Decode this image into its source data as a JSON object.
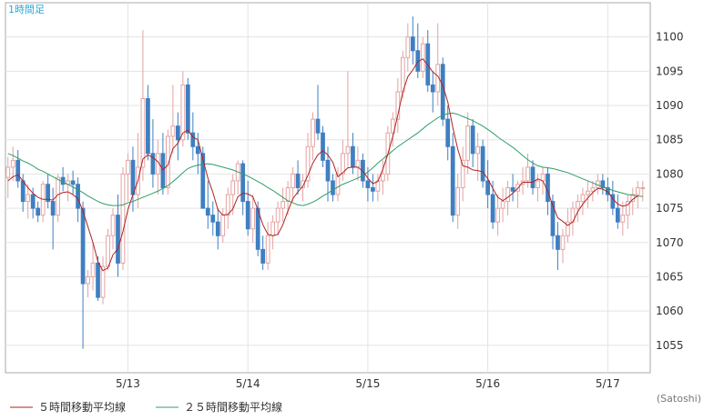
{
  "timeframe_label": "1時間足",
  "source_label": "(Satoshi)",
  "chart_data": {
    "type": "candlestick",
    "ylim": [
      1051,
      1105
    ],
    "y_ticks": [
      1055,
      1060,
      1065,
      1070,
      1075,
      1080,
      1085,
      1090,
      1095,
      1100
    ],
    "x_tick_labels": [
      "5/13",
      "5/14",
      "5/15",
      "5/16",
      "5/17"
    ],
    "x_tick_index": [
      24,
      48,
      72,
      96,
      120
    ],
    "series_count": 128,
    "legend": [
      {
        "name": "５時間移動平均線",
        "color": "#b22222"
      },
      {
        "name": "２５時間移動平均線",
        "color": "#2e9e6a"
      }
    ],
    "up_color": "#e3a3a3",
    "down_color": "#3f7fc1",
    "ma5_color": "#b22222",
    "ma25_color": "#2e9e6a",
    "grid": true,
    "candles_ohlc": [
      [
        1079.5,
        1082.5,
        1076.5,
        1081.0
      ],
      [
        1081.0,
        1084.0,
        1079.0,
        1082.0
      ],
      [
        1082.0,
        1083.5,
        1078.0,
        1079.0
      ],
      [
        1079.0,
        1080.0,
        1074.5,
        1076.0
      ],
      [
        1076.0,
        1078.5,
        1073.5,
        1077.0
      ],
      [
        1077.0,
        1078.0,
        1073.5,
        1075.0
      ],
      [
        1075.0,
        1076.0,
        1073.0,
        1074.0
      ],
      [
        1074.0,
        1079.0,
        1073.0,
        1078.5
      ],
      [
        1078.5,
        1080.0,
        1075.0,
        1076.0
      ],
      [
        1076.0,
        1078.0,
        1069.0,
        1074.0
      ],
      [
        1074.0,
        1080.0,
        1073.0,
        1079.5
      ],
      [
        1079.5,
        1081.0,
        1077.5,
        1078.5
      ],
      [
        1078.5,
        1080.0,
        1076.0,
        1079.0
      ],
      [
        1079.0,
        1080.5,
        1077.0,
        1078.5
      ],
      [
        1078.5,
        1079.5,
        1073.0,
        1075.0
      ],
      [
        1075.0,
        1076.0,
        1054.5,
        1064.0
      ],
      [
        1064.0,
        1066.0,
        1062.0,
        1065.0
      ],
      [
        1065.0,
        1070.0,
        1063.0,
        1067.0
      ],
      [
        1067.0,
        1068.0,
        1061.5,
        1062.0
      ],
      [
        1062.0,
        1068.0,
        1061.0,
        1066.5
      ],
      [
        1066.5,
        1072.0,
        1066.0,
        1071.0
      ],
      [
        1071.0,
        1075.0,
        1069.0,
        1074.0
      ],
      [
        1074.0,
        1077.0,
        1065.0,
        1067.0
      ],
      [
        1067.0,
        1081.0,
        1066.0,
        1080.0
      ],
      [
        1080.0,
        1083.0,
        1076.0,
        1082.0
      ],
      [
        1082.0,
        1084.0,
        1074.5,
        1077.0
      ],
      [
        1077.0,
        1086.0,
        1075.0,
        1081.0
      ],
      [
        1081.0,
        1101.0,
        1079.0,
        1091.0
      ],
      [
        1091.0,
        1093.0,
        1082.0,
        1083.0
      ],
      [
        1083.0,
        1088.0,
        1078.0,
        1080.0
      ],
      [
        1080.0,
        1085.0,
        1077.0,
        1083.0
      ],
      [
        1083.0,
        1086.0,
        1077.0,
        1078.0
      ],
      [
        1078.0,
        1086.5,
        1077.0,
        1085.5
      ],
      [
        1085.5,
        1093.0,
        1083.0,
        1087.0
      ],
      [
        1087.0,
        1089.0,
        1082.0,
        1085.0
      ],
      [
        1085.0,
        1095.0,
        1084.0,
        1093.0
      ],
      [
        1093.0,
        1094.0,
        1085.0,
        1086.0
      ],
      [
        1086.0,
        1089.0,
        1082.0,
        1084.0
      ],
      [
        1084.0,
        1086.0,
        1080.0,
        1083.0
      ],
      [
        1083.0,
        1084.0,
        1075.0,
        1075.0
      ],
      [
        1075.0,
        1079.0,
        1072.0,
        1074.0
      ],
      [
        1074.0,
        1076.0,
        1071.0,
        1073.0
      ],
      [
        1073.0,
        1075.0,
        1069.0,
        1071.0
      ],
      [
        1071.0,
        1075.0,
        1070.0,
        1074.0
      ],
      [
        1074.0,
        1078.0,
        1072.0,
        1077.0
      ],
      [
        1077.0,
        1080.0,
        1074.0,
        1079.0
      ],
      [
        1079.0,
        1082.0,
        1077.0,
        1081.5
      ],
      [
        1081.5,
        1082.0,
        1074.0,
        1076.0
      ],
      [
        1076.0,
        1079.0,
        1071.0,
        1072.0
      ],
      [
        1072.0,
        1077.0,
        1070.0,
        1075.0
      ],
      [
        1075.0,
        1076.0,
        1068.0,
        1069.0
      ],
      [
        1069.0,
        1071.0,
        1066.0,
        1067.0
      ],
      [
        1067.0,
        1073.0,
        1066.0,
        1071.0
      ],
      [
        1071.0,
        1074.0,
        1069.0,
        1073.0
      ],
      [
        1073.0,
        1076.0,
        1071.0,
        1075.0
      ],
      [
        1075.0,
        1078.0,
        1073.0,
        1076.0
      ],
      [
        1076.0,
        1079.0,
        1074.0,
        1078.0
      ],
      [
        1078.0,
        1081.0,
        1076.0,
        1080.0
      ],
      [
        1080.0,
        1082.0,
        1077.0,
        1078.0
      ],
      [
        1078.0,
        1080.0,
        1076.0,
        1079.0
      ],
      [
        1079.0,
        1086.0,
        1078.0,
        1084.0
      ],
      [
        1084.0,
        1089.0,
        1082.0,
        1088.0
      ],
      [
        1088.0,
        1093.0,
        1085.0,
        1086.0
      ],
      [
        1086.0,
        1087.0,
        1081.0,
        1082.0
      ],
      [
        1082.0,
        1084.0,
        1076.0,
        1079.0
      ],
      [
        1079.0,
        1080.0,
        1076.0,
        1077.0
      ],
      [
        1077.0,
        1081.0,
        1076.0,
        1080.0
      ],
      [
        1080.0,
        1085.0,
        1079.0,
        1083.0
      ],
      [
        1083.0,
        1095.0,
        1081.0,
        1084.0
      ],
      [
        1084.0,
        1086.0,
        1080.0,
        1081.0
      ],
      [
        1081.0,
        1084.0,
        1079.0,
        1082.0
      ],
      [
        1082.0,
        1083.0,
        1078.0,
        1079.0
      ],
      [
        1079.0,
        1081.0,
        1076.0,
        1078.0
      ],
      [
        1078.0,
        1080.0,
        1076.0,
        1077.5
      ],
      [
        1077.5,
        1080.0,
        1076.0,
        1079.0
      ],
      [
        1079.0,
        1082.0,
        1077.0,
        1080.0
      ],
      [
        1080.0,
        1087.0,
        1079.0,
        1086.0
      ],
      [
        1086.0,
        1089.0,
        1084.0,
        1088.0
      ],
      [
        1088.0,
        1094.0,
        1086.0,
        1092.0
      ],
      [
        1092.0,
        1098.0,
        1091.0,
        1097.0
      ],
      [
        1097.0,
        1102.0,
        1095.0,
        1100.0
      ],
      [
        1100.0,
        1103.0,
        1096.0,
        1098.0
      ],
      [
        1098.0,
        1102.0,
        1094.0,
        1095.0
      ],
      [
        1095.0,
        1100.0,
        1094.0,
        1099.0
      ],
      [
        1099.0,
        1101.0,
        1092.0,
        1093.0
      ],
      [
        1093.0,
        1095.0,
        1089.0,
        1092.0
      ],
      [
        1092.0,
        1102.0,
        1090.0,
        1096.0
      ],
      [
        1096.0,
        1097.0,
        1087.0,
        1088.0
      ],
      [
        1088.0,
        1090.0,
        1082.0,
        1084.0
      ],
      [
        1084.0,
        1086.0,
        1073.0,
        1074.0
      ],
      [
        1074.0,
        1080.0,
        1072.0,
        1078.0
      ],
      [
        1078.0,
        1084.0,
        1076.0,
        1082.0
      ],
      [
        1082.0,
        1089.0,
        1080.0,
        1087.0
      ],
      [
        1087.0,
        1088.0,
        1081.0,
        1083.0
      ],
      [
        1083.0,
        1086.0,
        1079.0,
        1084.0
      ],
      [
        1084.0,
        1085.0,
        1078.0,
        1079.0
      ],
      [
        1079.0,
        1082.0,
        1075.0,
        1077.0
      ],
      [
        1077.0,
        1079.0,
        1072.0,
        1073.0
      ],
      [
        1073.0,
        1077.0,
        1071.0,
        1075.0
      ],
      [
        1075.0,
        1078.0,
        1073.0,
        1076.0
      ],
      [
        1076.0,
        1079.0,
        1074.0,
        1078.0
      ],
      [
        1078.0,
        1080.0,
        1076.0,
        1077.5
      ],
      [
        1077.5,
        1079.0,
        1075.0,
        1078.5
      ],
      [
        1078.5,
        1081.0,
        1077.0,
        1079.0
      ],
      [
        1079.0,
        1083.0,
        1078.0,
        1081.0
      ],
      [
        1081.0,
        1082.0,
        1077.0,
        1078.0
      ],
      [
        1078.0,
        1080.0,
        1076.0,
        1079.0
      ],
      [
        1079.0,
        1081.0,
        1077.0,
        1080.0
      ],
      [
        1080.0,
        1081.0,
        1074.0,
        1076.0
      ],
      [
        1076.0,
        1077.0,
        1069.0,
        1071.0
      ],
      [
        1071.0,
        1073.0,
        1066.0,
        1069.0
      ],
      [
        1069.0,
        1072.0,
        1067.0,
        1071.0
      ],
      [
        1071.0,
        1075.0,
        1070.0,
        1073.0
      ],
      [
        1073.0,
        1076.0,
        1071.0,
        1075.0
      ],
      [
        1075.0,
        1077.0,
        1073.0,
        1076.0
      ],
      [
        1076.0,
        1078.0,
        1074.0,
        1077.0
      ],
      [
        1077.0,
        1079.0,
        1075.0,
        1077.5
      ],
      [
        1077.5,
        1079.0,
        1076.0,
        1078.0
      ],
      [
        1078.0,
        1080.0,
        1077.0,
        1079.0
      ],
      [
        1079.0,
        1080.0,
        1077.0,
        1078.0
      ],
      [
        1078.0,
        1079.5,
        1076.0,
        1077.0
      ],
      [
        1077.0,
        1079.0,
        1074.0,
        1075.0
      ],
      [
        1075.0,
        1077.0,
        1072.0,
        1073.0
      ],
      [
        1073.0,
        1076.0,
        1071.0,
        1074.0
      ],
      [
        1074.0,
        1077.0,
        1072.0,
        1076.0
      ],
      [
        1076.0,
        1078.0,
        1074.0,
        1077.0
      ],
      [
        1077.0,
        1079.0,
        1075.0,
        1078.0
      ],
      [
        1078.0,
        1079.0,
        1076.0,
        1078.0
      ]
    ],
    "ma5": [
      1079.0,
      1079.6,
      1079.9,
      1079.0,
      1078.0,
      1077.2,
      1076.6,
      1076.3,
      1076.3,
      1076.2,
      1077.0,
      1077.3,
      1077.4,
      1077.0,
      1076.4,
      1074.6,
      1072.3,
      1070.0,
      1067.2,
      1065.9,
      1066.3,
      1068.2,
      1069.1,
      1071.6,
      1074.8,
      1077.0,
      1079.0,
      1082.2,
      1082.8,
      1082.4,
      1081.8,
      1080.6,
      1081.3,
      1083.7,
      1084.5,
      1086.0,
      1086.4,
      1085.4,
      1085.0,
      1082.2,
      1079.4,
      1077.3,
      1074.8,
      1074.0,
      1074.1,
      1074.9,
      1076.7,
      1077.2,
      1077.1,
      1076.7,
      1074.8,
      1072.6,
      1071.2,
      1071.0,
      1071.2,
      1072.6,
      1074.6,
      1076.4,
      1077.4,
      1078.2,
      1079.8,
      1081.6,
      1082.8,
      1083.4,
      1082.8,
      1081.7,
      1079.6,
      1080.2,
      1080.9,
      1081.0,
      1081.0,
      1080.4,
      1079.4,
      1078.6,
      1078.9,
      1080.7,
      1082.9,
      1085.5,
      1088.6,
      1092.0,
      1094.2,
      1095.2,
      1096.4,
      1096.8,
      1095.9,
      1094.9,
      1094.3,
      1092.9,
      1090.5,
      1086.8,
      1083.6,
      1081.2,
      1081.0,
      1080.6,
      1080.5,
      1080.3,
      1079.3,
      1077.9,
      1076.6,
      1076.1,
      1076.6,
      1077.2,
      1077.9,
      1078.8,
      1078.8,
      1078.8,
      1079.3,
      1079.0,
      1077.5,
      1075.4,
      1073.6,
      1073.1,
      1072.5,
      1073.0,
      1074.5,
      1075.6,
      1076.5,
      1077.3,
      1077.9,
      1077.8,
      1077.4,
      1076.4,
      1075.6,
      1075.3,
      1075.5,
      1076.3,
      1076.8
    ],
    "ma25": [
      1083.0,
      1082.7,
      1082.3,
      1081.9,
      1081.6,
      1081.2,
      1080.7,
      1080.4,
      1080.0,
      1079.6,
      1079.2,
      1078.8,
      1078.5,
      1078.1,
      1077.7,
      1077.3,
      1076.8,
      1076.4,
      1076.0,
      1075.7,
      1075.5,
      1075.4,
      1075.4,
      1075.5,
      1075.8,
      1076.0,
      1076.3,
      1076.6,
      1076.9,
      1077.2,
      1077.5,
      1077.9,
      1078.3,
      1078.9,
      1079.5,
      1080.2,
      1080.8,
      1081.1,
      1081.3,
      1081.4,
      1081.5,
      1081.4,
      1081.2,
      1081.0,
      1080.8,
      1080.6,
      1080.3,
      1080.0,
      1079.7,
      1079.3,
      1078.9,
      1078.5,
      1078.0,
      1077.6,
      1077.1,
      1076.6,
      1076.1,
      1075.8,
      1075.5,
      1075.4,
      1075.6,
      1075.9,
      1076.3,
      1076.8,
      1077.2,
      1077.7,
      1078.1,
      1078.5,
      1078.8,
      1079.1,
      1079.4,
      1079.8,
      1080.3,
      1080.9,
      1081.6,
      1082.2,
      1082.8,
      1083.4,
      1084.0,
      1084.5,
      1085.0,
      1085.5,
      1086.0,
      1086.6,
      1087.2,
      1087.7,
      1088.2,
      1088.6,
      1088.8,
      1088.9,
      1088.7,
      1088.4,
      1088.1,
      1087.8,
      1087.4,
      1087.0,
      1086.5,
      1086.0,
      1085.4,
      1084.9,
      1084.4,
      1083.9,
      1083.3,
      1082.7,
      1082.1,
      1081.6,
      1081.2,
      1081.0,
      1080.9,
      1080.8,
      1080.6,
      1080.4,
      1080.2,
      1079.9,
      1079.6,
      1079.3,
      1079.0,
      1078.7,
      1078.4,
      1078.1,
      1077.9,
      1077.6,
      1077.4,
      1077.2,
      1077.0,
      1076.9,
      1076.8,
      1076.7
    ]
  }
}
